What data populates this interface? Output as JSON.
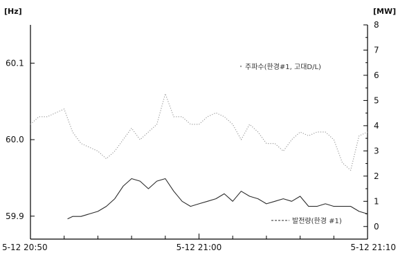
{
  "chart_data": {
    "type": "line",
    "title": "",
    "xlabel": "",
    "x_tick_labels": [
      "5-12 20:50",
      "5-12 21:00",
      "5-12 21:10"
    ],
    "x_range_minutes": [
      0,
      20
    ],
    "x_minor_tick_minutes": [
      2,
      4,
      6,
      8,
      10,
      12,
      14,
      16,
      18
    ],
    "left_axis": {
      "unit": "[Hz]",
      "ylim": [
        59.87,
        60.15
      ],
      "ticks": [
        60.1,
        60.0,
        59.9
      ],
      "tick_labels": [
        "60.1",
        "60.0",
        "59.9"
      ]
    },
    "right_axis": {
      "unit": "[MW]",
      "ylim": [
        -0.5,
        8
      ],
      "ticks": [
        0,
        1,
        2,
        3,
        4,
        5,
        6,
        7,
        8
      ],
      "tick_labels": [
        "0",
        "1",
        "2",
        "3",
        "4",
        "5",
        "6",
        "7",
        "8"
      ]
    },
    "series": [
      {
        "name": "주파수(한경#1, 고대D/L)",
        "axis": "left",
        "style": "dotted",
        "color": "#9a9a9a",
        "x": [
          0,
          0.5,
          1,
          1.5,
          2,
          2.5,
          3,
          3.5,
          4,
          4.5,
          5,
          5.5,
          6,
          6.5,
          7,
          7.5,
          8,
          8.5,
          9,
          9.5,
          10,
          10.5,
          11,
          11.5,
          12,
          12.5,
          13,
          13.5,
          14,
          14.5,
          15,
          15.5,
          16,
          16.5,
          17,
          17.5,
          18,
          18.5,
          19,
          19.5,
          20
        ],
        "values": [
          60.02,
          60.03,
          60.03,
          60.035,
          60.04,
          60.01,
          59.995,
          59.99,
          59.985,
          59.975,
          59.985,
          60.0,
          60.015,
          60.0,
          60.01,
          60.02,
          60.06,
          60.03,
          60.03,
          60.02,
          60.02,
          60.03,
          60.035,
          60.03,
          60.02,
          60.0,
          60.02,
          60.01,
          59.995,
          59.995,
          59.985,
          60.0,
          60.01,
          60.005,
          60.01,
          60.01,
          60.0,
          59.97,
          59.96,
          60.005,
          60.01
        ]
      },
      {
        "name": "발전량(한경 #1)",
        "axis": "right",
        "style": "solid",
        "color": "#2a2a2a",
        "x": [
          2.2,
          2.5,
          3,
          3.5,
          4,
          4.5,
          5,
          5.5,
          6,
          6.5,
          7,
          7.5,
          8,
          8.5,
          9,
          9.5,
          10,
          10.5,
          11,
          11.5,
          12,
          12.5,
          13,
          13.5,
          14,
          14.5,
          15,
          15.5,
          16,
          16.5,
          17,
          17.5,
          18,
          18.5,
          19,
          19.5,
          20
        ],
        "values": [
          0.3,
          0.4,
          0.4,
          0.5,
          0.6,
          0.8,
          1.1,
          1.6,
          1.9,
          1.8,
          1.5,
          1.8,
          1.9,
          1.4,
          1.0,
          0.8,
          0.9,
          1.0,
          1.1,
          1.3,
          1.0,
          1.4,
          1.2,
          1.1,
          0.9,
          1.0,
          1.1,
          1.0,
          1.2,
          0.8,
          0.8,
          0.9,
          0.8,
          0.8,
          0.8,
          0.6,
          0.5
        ]
      }
    ],
    "legend_placement": "inside, near each series (frequency upper-right, power lower-right)",
    "grid": false
  }
}
